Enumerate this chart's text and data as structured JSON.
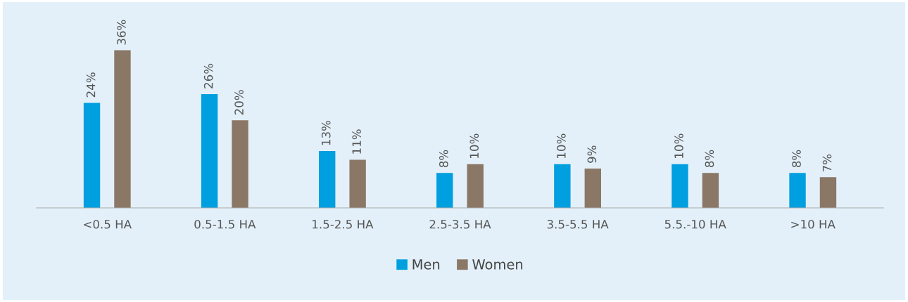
{
  "chart_data": {
    "type": "bar",
    "categories": [
      "<0.5 HA",
      "0.5-1.5 HA",
      "1.5-2.5 HA",
      "2.5-3.5 HA",
      "3.5-5.5 HA",
      "5.5.-10 HA",
      ">10 HA"
    ],
    "series": [
      {
        "name": "Men",
        "color": "#009fdf",
        "values": [
          24,
          26,
          13,
          8,
          10,
          10,
          8
        ],
        "value_labels": [
          "24%",
          "26%",
          "13%",
          "8%",
          "10%",
          "10%",
          "8%"
        ]
      },
      {
        "name": "Women",
        "color": "#8b7765",
        "values": [
          36,
          20,
          11,
          10,
          9,
          8,
          7
        ],
        "value_labels": [
          "36%",
          "20%",
          "11%",
          "10%",
          "9%",
          "8%",
          "7%"
        ]
      }
    ],
    "tick_labels": "x",
    "legend": "bottom",
    "grid": false
  }
}
